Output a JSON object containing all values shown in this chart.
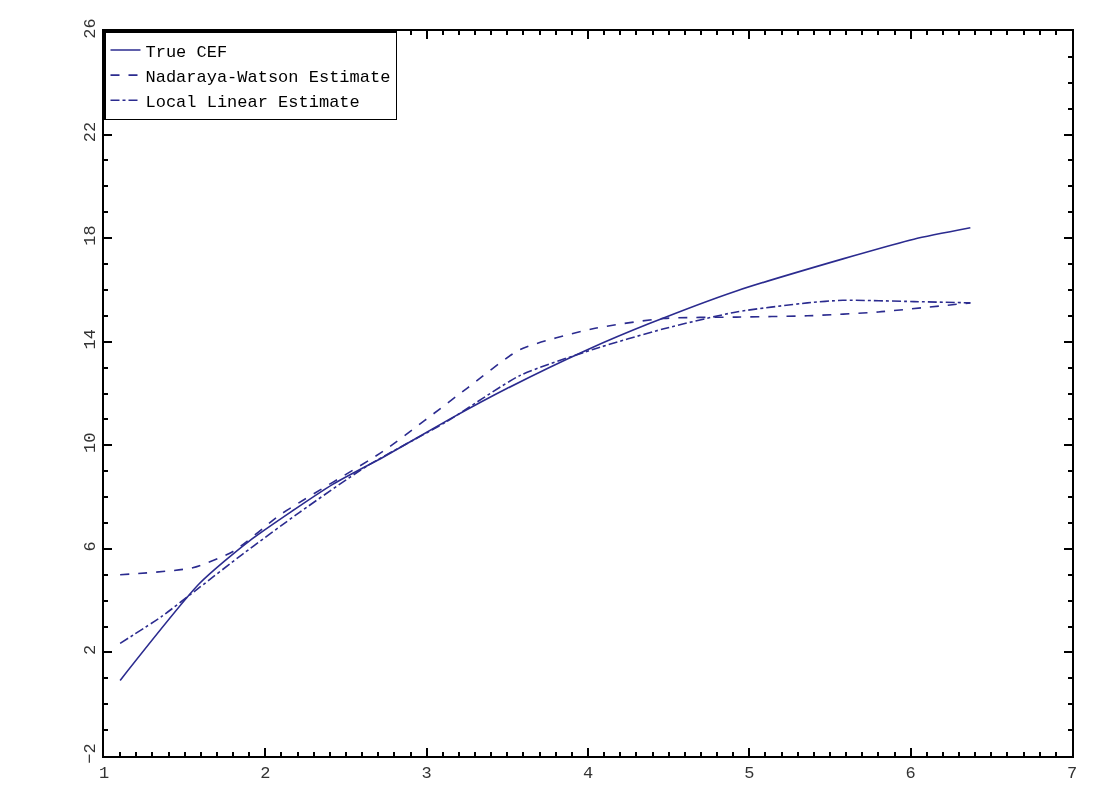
{
  "chart_data": {
    "type": "line",
    "xlim": [
      1,
      7
    ],
    "ylim": [
      -2,
      26
    ],
    "xticks": [
      1,
      2,
      3,
      4,
      5,
      6,
      7
    ],
    "yticks": [
      -2,
      2,
      6,
      10,
      14,
      18,
      22,
      26
    ],
    "legend": "top left",
    "marker": "none",
    "series": [
      {
        "name": "True CEF",
        "color": "#2b2b8f",
        "line_style": "solid",
        "x": [
          1.1,
          1.59,
          1.9,
          2.42,
          2.73,
          3.14,
          3.5,
          4.0,
          4.38,
          4.92,
          5.58,
          6.02,
          6.37
        ],
        "values": [
          0.92,
          4.65,
          6.3,
          8.5,
          9.54,
          11.0,
          12.2,
          13.7,
          14.7,
          15.96,
          17.2,
          17.96,
          18.4
        ]
      },
      {
        "name": "Nadaraya-Watson Estimate",
        "color": "#2b2b8f",
        "line_style": "dashed",
        "x": [
          1.1,
          1.55,
          1.8,
          2.1,
          2.73,
          3.25,
          3.58,
          4.03,
          4.47,
          4.92,
          5.36,
          5.8,
          6.37
        ],
        "values": [
          5.0,
          5.27,
          5.9,
          7.35,
          9.77,
          12.2,
          13.7,
          14.5,
          14.9,
          14.95,
          15.0,
          15.15,
          15.5
        ]
      },
      {
        "name": "Local Linear Estimate",
        "color": "#2b2b8f",
        "line_style": "dashdot",
        "x": [
          1.1,
          1.36,
          1.59,
          1.86,
          2.21,
          2.63,
          3.12,
          3.58,
          4.03,
          4.47,
          4.92,
          5.36,
          5.58,
          6.02,
          6.37
        ],
        "values": [
          2.35,
          3.4,
          4.5,
          5.8,
          7.4,
          9.2,
          10.9,
          12.7,
          13.7,
          14.5,
          15.15,
          15.5,
          15.6,
          15.55,
          15.5
        ]
      }
    ]
  }
}
